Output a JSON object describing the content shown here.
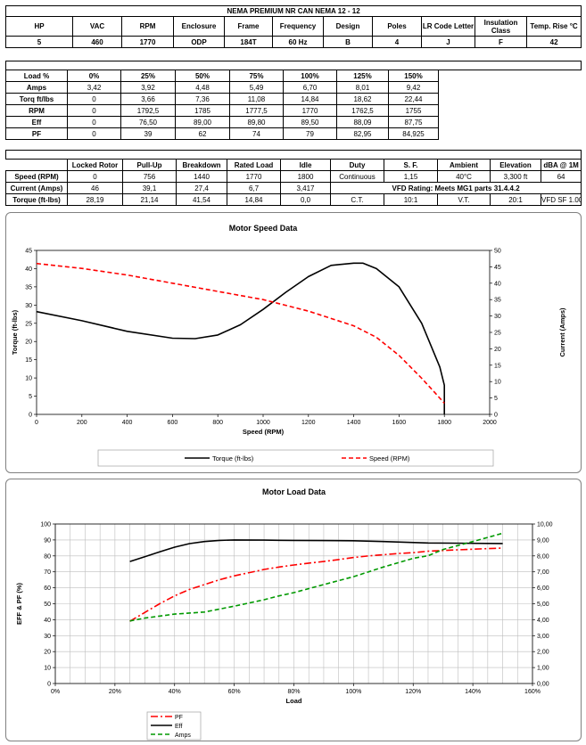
{
  "spec": {
    "title": "NEMA PREMIUM NR CAN NEMA 12 - 12",
    "headers": [
      "HP",
      "VAC",
      "RPM",
      "Enclosure",
      "Frame",
      "Frequency",
      "Design",
      "Poles",
      "LR Code Letter",
      "Insulation Class",
      "Temp. Rise °C"
    ],
    "values": [
      "5",
      "460",
      "1770",
      "ODP",
      "184T",
      "60 Hz",
      "B",
      "4",
      "J",
      "F",
      "42"
    ]
  },
  "load_table": {
    "headers": [
      "Load %",
      "0%",
      "25%",
      "50%",
      "75%",
      "100%",
      "125%",
      "150%"
    ],
    "rows": [
      [
        "Amps",
        "3,42",
        "3,92",
        "4,48",
        "5,49",
        "6,70",
        "8,01",
        "9,42"
      ],
      [
        "Torq ft/lbs",
        "0",
        "3,66",
        "7,36",
        "11,08",
        "14,84",
        "18,62",
        "22,44"
      ],
      [
        "RPM",
        "0",
        "1792,5",
        "1785",
        "1777,5",
        "1770",
        "1762,5",
        "1755"
      ],
      [
        "Eff",
        "0",
        "76,50",
        "89,00",
        "89,80",
        "89,50",
        "88,09",
        "87,75"
      ],
      [
        "PF",
        "0",
        "39",
        "62",
        "74",
        "79",
        "82,95",
        "84,925"
      ]
    ]
  },
  "perf_table": {
    "headers": [
      "Locked Rotor",
      "Pull-Up",
      "Breakdown",
      "Rated Load",
      "Idle",
      "Duty",
      "S. F.",
      "Ambient",
      "Elevation",
      "dBA @ 1M"
    ],
    "speed": {
      "label": "Speed (RPM)",
      "values": [
        "0",
        "756",
        "1440",
        "1770",
        "1800"
      ],
      "extra": [
        "Continuous",
        "1,15",
        "40°C",
        "3,300 ft",
        "64"
      ]
    },
    "current": {
      "label": "Current (Amps)",
      "values": [
        "46",
        "39,1",
        "27,4",
        "6,7",
        "3,417"
      ],
      "vfd": "VFD Rating: Meets MG1 parts 31.4.4.2"
    },
    "torque": {
      "label": "Torque (ft-lbs)",
      "values": [
        "28,19",
        "21,14",
        "41,54",
        "14,84",
        "0,0"
      ],
      "extra": [
        "C.T.",
        "10:1",
        "V.T.",
        "20:1",
        "VFD SF 1.00"
      ]
    }
  },
  "chart_data": [
    {
      "type": "line",
      "title": "Motor Speed Data",
      "xlabel": "Speed (RPM)",
      "ylabel": "Torque (ft-lbs)",
      "y2label": "Current (Amps)",
      "xlim": [
        0,
        2000
      ],
      "ylim": [
        0,
        45
      ],
      "y2lim": [
        0,
        50
      ],
      "xticks": [
        "0",
        "200",
        "400",
        "600",
        "800",
        "1000",
        "1200",
        "1400",
        "1600",
        "1800",
        "2000"
      ],
      "yticks": [
        "0",
        "5",
        "10",
        "15",
        "20",
        "25",
        "30",
        "35",
        "40",
        "45"
      ],
      "y2ticks": [
        "0",
        "5",
        "10",
        "15",
        "20",
        "25",
        "30",
        "35",
        "40",
        "45",
        "50"
      ],
      "legend": "bottom",
      "series": [
        {
          "name": "Torque (ft-lbs)",
          "color": "#000000",
          "dash": "solid",
          "axis": "left",
          "x": [
            0,
            200,
            400,
            600,
            700,
            800,
            900,
            1000,
            1100,
            1200,
            1300,
            1400,
            1440,
            1500,
            1600,
            1700,
            1780,
            1800,
            1800
          ],
          "y": [
            28.2,
            25.7,
            22.8,
            20.9,
            20.8,
            21.8,
            24.6,
            28.8,
            33.5,
            37.8,
            40.9,
            41.5,
            41.5,
            40,
            35,
            25,
            13,
            8,
            0
          ]
        },
        {
          "name": "Speed (RPM)",
          "color": "#ff0000",
          "dash": "dashed",
          "axis": "right",
          "x": [
            0,
            200,
            400,
            600,
            800,
            1000,
            1200,
            1400,
            1500,
            1600,
            1700,
            1760,
            1800
          ],
          "y": [
            46,
            44.5,
            42.5,
            40,
            37.5,
            35,
            31.5,
            27,
            23.5,
            18,
            11,
            6.5,
            3.4
          ]
        }
      ]
    },
    {
      "type": "line",
      "title": "Motor Load Data",
      "xlabel": "Load",
      "ylabel": "EFF & PF (%)",
      "xlim": [
        0,
        160
      ],
      "ylim": [
        0,
        100
      ],
      "y2lim": [
        0,
        10
      ],
      "xticks": [
        "0%",
        "20%",
        "40%",
        "60%",
        "80%",
        "100%",
        "120%",
        "140%",
        "160%"
      ],
      "yticks": [
        "0",
        "10",
        "20",
        "30",
        "40",
        "50",
        "60",
        "70",
        "80",
        "90",
        "100"
      ],
      "y2ticks": [
        "0,00",
        "1,00",
        "2,00",
        "3,00",
        "4,00",
        "5,00",
        "6,00",
        "7,00",
        "8,00",
        "9,00",
        "10,00"
      ],
      "legend": "bottom-left",
      "series": [
        {
          "name": "PF",
          "color": "#ff0000",
          "dash": "dashdot",
          "axis": "left",
          "x": [
            25,
            30,
            35,
            40,
            45,
            50,
            55,
            60,
            65,
            70,
            75,
            80,
            85,
            90,
            95,
            100,
            105,
            110,
            115,
            120,
            125,
            130,
            135,
            140,
            145,
            150
          ],
          "y": [
            39,
            44.5,
            50,
            55,
            59,
            62,
            65,
            67.5,
            69.5,
            71.5,
            73,
            74.3,
            75.5,
            76.5,
            77.7,
            79,
            80,
            80.7,
            81.5,
            82,
            82.95,
            83.4,
            83.8,
            84.2,
            84.6,
            84.925
          ]
        },
        {
          "name": "Eff",
          "color": "#000000",
          "dash": "solid",
          "axis": "left",
          "x": [
            25,
            30,
            35,
            40,
            45,
            50,
            55,
            60,
            70,
            75,
            80,
            90,
            100,
            110,
            125,
            150
          ],
          "y": [
            76.5,
            79.5,
            82.5,
            85.5,
            87.7,
            89,
            89.7,
            90,
            89.9,
            89.8,
            89.7,
            89.6,
            89.5,
            89,
            88.09,
            87.75
          ]
        },
        {
          "name": "Amps",
          "color": "#009900",
          "dash": "dashed",
          "axis": "right",
          "x": [
            25,
            30,
            40,
            50,
            60,
            70,
            75,
            80,
            90,
            100,
            110,
            120,
            125,
            130,
            140,
            150
          ],
          "y": [
            3.92,
            4.1,
            4.35,
            4.48,
            4.85,
            5.25,
            5.49,
            5.7,
            6.2,
            6.7,
            7.3,
            7.85,
            8.01,
            8.4,
            8.9,
            9.42
          ]
        }
      ]
    }
  ]
}
